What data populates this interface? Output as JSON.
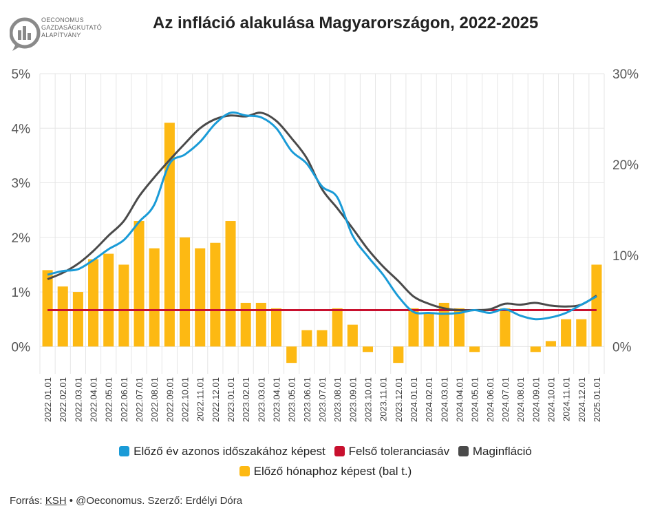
{
  "header": {
    "logo_lines": [
      "OECONOMUS",
      "GAZDASÁGKUTATÓ",
      "ALAPÍTVÁNY"
    ],
    "title": "Az infláció alakulása Magyarországon, 2022-2025"
  },
  "colors": {
    "monthly_bar": "#FDB913",
    "yoy_line": "#1A9BD7",
    "tolerance_line": "#C8102E",
    "core_line": "#4A4A4A",
    "grid": "#E6E6E6"
  },
  "chart_data": {
    "type": "bar+line",
    "title": "Az infláció alakulása Magyarországon, 2022-2025",
    "categories": [
      "2022.01.01",
      "2022.02.01",
      "2022.03.01",
      "2022.04.01",
      "2022.05.01",
      "2022.06.01",
      "2022.07.01",
      "2022.08.01",
      "2022.09.01",
      "2022.10.01",
      "2022.11.01",
      "2022.12.01",
      "2023.01.01",
      "2023.02.01",
      "2023.03.01",
      "2023.04.01",
      "2023.05.01",
      "2023.06.01",
      "2023.07.01",
      "2023.08.01",
      "2023.09.01",
      "2023.10.01",
      "2023.11.01",
      "2023.12.01",
      "2024.01.01",
      "2024.02.01",
      "2024.03.01",
      "2024.04.01",
      "2024.05.01",
      "2024.06.01",
      "2024.07.01",
      "2024.08.01",
      "2024.09.01",
      "2024.10.01",
      "2024.11.01",
      "2024.12.01",
      "2025.01.01"
    ],
    "y_left": {
      "ticks": [
        "5%",
        "4%",
        "3%",
        "2%",
        "1%",
        "0%"
      ],
      "tick_values": [
        5,
        4,
        3,
        2,
        1,
        0
      ],
      "range": [
        -0.5,
        5
      ]
    },
    "y_right": {
      "ticks": [
        "30%",
        "20%",
        "10%",
        "0%"
      ],
      "tick_values": [
        30,
        20,
        10,
        0
      ],
      "range": [
        -3,
        30
      ]
    },
    "grid": true,
    "legend_position": "bottom",
    "series": [
      {
        "name": "Előző hónaphoz képest (bal t.)",
        "type": "bar",
        "axis": "left",
        "color": "#FDB913",
        "values": [
          1.4,
          1.1,
          1.0,
          1.6,
          1.7,
          1.5,
          2.3,
          1.8,
          4.1,
          2.0,
          1.8,
          1.9,
          2.3,
          0.8,
          0.8,
          0.7,
          -0.3,
          0.3,
          0.3,
          0.7,
          0.4,
          -0.1,
          0.0,
          -0.3,
          0.7,
          0.6,
          0.8,
          0.7,
          -0.1,
          0.0,
          0.7,
          0.0,
          -0.1,
          0.1,
          0.5,
          0.5,
          1.5
        ]
      },
      {
        "name": "Előző év azonos időszakához képest",
        "type": "line",
        "axis": "right",
        "color": "#1A9BD7",
        "values": [
          7.9,
          8.3,
          8.5,
          9.5,
          10.7,
          11.7,
          13.7,
          15.6,
          20.1,
          21.1,
          22.5,
          24.5,
          25.7,
          25.4,
          25.2,
          24.0,
          21.5,
          20.1,
          17.6,
          16.4,
          12.2,
          9.9,
          7.9,
          5.5,
          3.8,
          3.7,
          3.6,
          3.7,
          4.0,
          3.7,
          4.1,
          3.4,
          3.0,
          3.2,
          3.7,
          4.6,
          5.5
        ]
      },
      {
        "name": "Felső toleranciasáv",
        "type": "line",
        "axis": "right",
        "color": "#C8102E",
        "values": [
          4,
          4,
          4,
          4,
          4,
          4,
          4,
          4,
          4,
          4,
          4,
          4,
          4,
          4,
          4,
          4,
          4,
          4,
          4,
          4,
          4,
          4,
          4,
          4,
          4,
          4,
          4,
          4,
          4,
          4,
          4,
          4,
          4,
          4,
          4,
          4,
          4
        ]
      },
      {
        "name": "Maginfláció",
        "type": "line",
        "axis": "right",
        "color": "#4A4A4A",
        "values": [
          7.4,
          8.1,
          9.1,
          10.5,
          12.2,
          13.8,
          16.5,
          18.6,
          20.5,
          22.3,
          24.0,
          25.0,
          25.4,
          25.3,
          25.7,
          24.8,
          22.9,
          20.7,
          17.3,
          15.2,
          13.0,
          10.7,
          8.8,
          7.2,
          5.5,
          4.7,
          4.2,
          4.0,
          4.0,
          4.1,
          4.7,
          4.6,
          4.8,
          4.5,
          4.4,
          4.6,
          5.6
        ]
      }
    ]
  },
  "legend": {
    "row1": [
      {
        "label": "Előző év azonos időszakához képest",
        "color": "#1A9BD7"
      },
      {
        "label": "Felső toleranciasáv",
        "color": "#C8102E"
      },
      {
        "label": "Maginfláció",
        "color": "#4A4A4A"
      }
    ],
    "row2": [
      {
        "label": "Előző hónaphoz képest (bal t.)",
        "color": "#FDB913"
      }
    ]
  },
  "footer": {
    "prefix": "Forrás: ",
    "source": "KSH",
    "rest": " • @Oeconomus. Szerző: Erdélyi Dóra"
  }
}
